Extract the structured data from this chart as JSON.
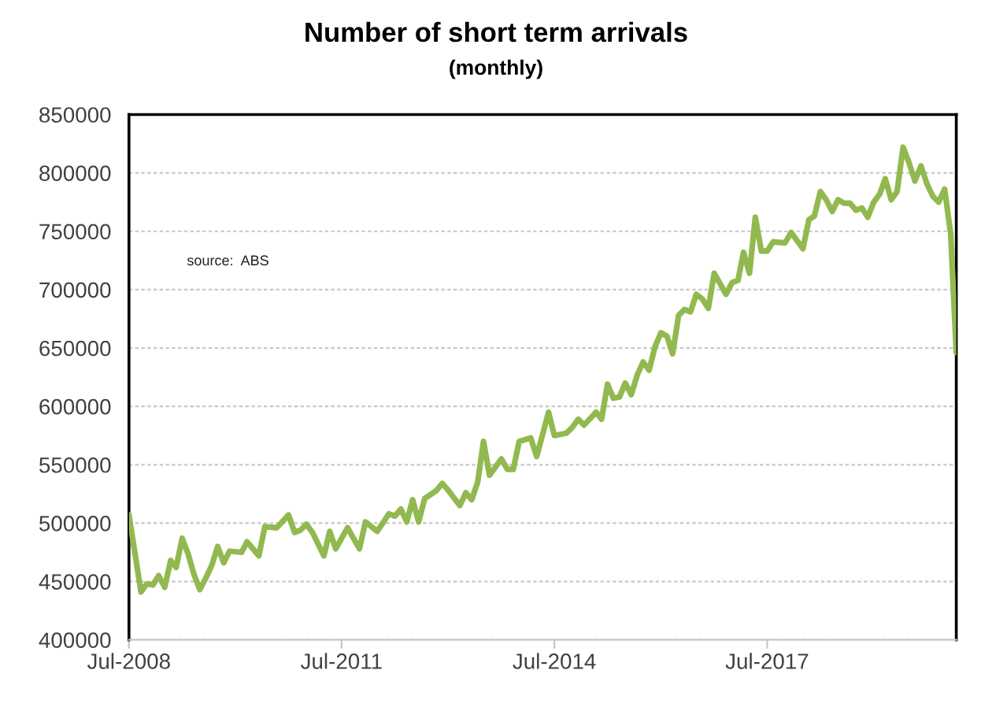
{
  "chart_data": {
    "type": "line",
    "title": "Number of short term arrivals",
    "subtitle": "(monthly)",
    "annotations": [
      "source:  ABS"
    ],
    "x": [
      "2008-07",
      "2008-09",
      "2008-10",
      "2008-11",
      "2008-12",
      "2009-01",
      "2009-02",
      "2009-03",
      "2009-04",
      "2009-05",
      "2009-06",
      "2009-07",
      "2009-08",
      "2009-09",
      "2009-10",
      "2009-11",
      "2009-12",
      "2010-02",
      "2010-03",
      "2010-05",
      "2010-06",
      "2010-08",
      "2010-10",
      "2010-11",
      "2010-12",
      "2011-01",
      "2011-02",
      "2011-04",
      "2011-05",
      "2011-06",
      "2011-08",
      "2011-10",
      "2011-11",
      "2012-01",
      "2012-03",
      "2012-04",
      "2012-05",
      "2012-06",
      "2012-07",
      "2012-08",
      "2012-09",
      "2012-11",
      "2012-12",
      "2013-01",
      "2013-03",
      "2013-04",
      "2013-05",
      "2013-06",
      "2013-07",
      "2013-08",
      "2013-10",
      "2013-11",
      "2013-12",
      "2014-01",
      "2014-03",
      "2014-04",
      "2014-06",
      "2014-07",
      "2014-09",
      "2014-10",
      "2014-11",
      "2014-12",
      "2015-02",
      "2015-03",
      "2015-04",
      "2015-05",
      "2015-06",
      "2015-07",
      "2015-08",
      "2015-09",
      "2015-10",
      "2015-11",
      "2015-12",
      "2016-01",
      "2016-02",
      "2016-03",
      "2016-04",
      "2016-05",
      "2016-06",
      "2016-07",
      "2016-08",
      "2016-09",
      "2016-10",
      "2016-11",
      "2016-12",
      "2017-01",
      "2017-02",
      "2017-03",
      "2017-04",
      "2017-05",
      "2017-06",
      "2017-07",
      "2017-08",
      "2017-10",
      "2017-11",
      "2018-01",
      "2018-02",
      "2018-03",
      "2018-04",
      "2018-05",
      "2018-06",
      "2018-07",
      "2018-08",
      "2018-09",
      "2018-10",
      "2018-11",
      "2018-12",
      "2019-01",
      "2019-02",
      "2019-03",
      "2019-04",
      "2019-05",
      "2019-06",
      "2019-07",
      "2019-08",
      "2019-09",
      "2019-10",
      "2019-11",
      "2019-12",
      "2020-01",
      "2020-02",
      "2020-03"
    ],
    "series": [
      {
        "color": "#92b94f",
        "values": [
          507000,
          441000,
          448000,
          447000,
          455000,
          445000,
          468000,
          462000,
          487000,
          474000,
          456000,
          443000,
          453000,
          464000,
          480000,
          466000,
          476000,
          475000,
          484000,
          472000,
          497000,
          496000,
          507000,
          492000,
          494000,
          499000,
          492000,
          472000,
          493000,
          478000,
          496000,
          478000,
          501000,
          493000,
          508000,
          506000,
          512000,
          501000,
          520000,
          501000,
          521000,
          528000,
          534000,
          528000,
          515000,
          526000,
          520000,
          535000,
          570000,
          541000,
          555000,
          546000,
          546000,
          570000,
          573000,
          557000,
          595000,
          575000,
          577000,
          582000,
          589000,
          584000,
          595000,
          589000,
          619000,
          607000,
          608000,
          620000,
          610000,
          627000,
          638000,
          631000,
          651000,
          663000,
          660000,
          645000,
          678000,
          683000,
          681000,
          696000,
          692000,
          684000,
          714000,
          705000,
          696000,
          706000,
          708000,
          732000,
          714000,
          762000,
          733000,
          733000,
          741000,
          740000,
          749000,
          735000,
          760000,
          763000,
          784000,
          777000,
          767000,
          777000,
          774000,
          774000,
          768000,
          770000,
          762000,
          775000,
          782000,
          795000,
          777000,
          784000,
          822000,
          809000,
          793000,
          806000,
          791000,
          780000,
          775000,
          786000,
          748000,
          646000
        ]
      }
    ],
    "xlim": [
      "2008-07",
      "2020-03"
    ],
    "xticks": [
      {
        "value": "2008-07",
        "label": "Jul-2008"
      },
      {
        "value": "2011-07",
        "label": "Jul-2011"
      },
      {
        "value": "2014-07",
        "label": "Jul-2014"
      },
      {
        "value": "2017-07",
        "label": "Jul-2017"
      }
    ],
    "ylim": [
      400000,
      850000
    ],
    "yticks": [
      400000,
      450000,
      500000,
      550000,
      600000,
      650000,
      700000,
      750000,
      800000,
      850000
    ],
    "grid": "y",
    "marker": "none",
    "line_style": "solid"
  }
}
